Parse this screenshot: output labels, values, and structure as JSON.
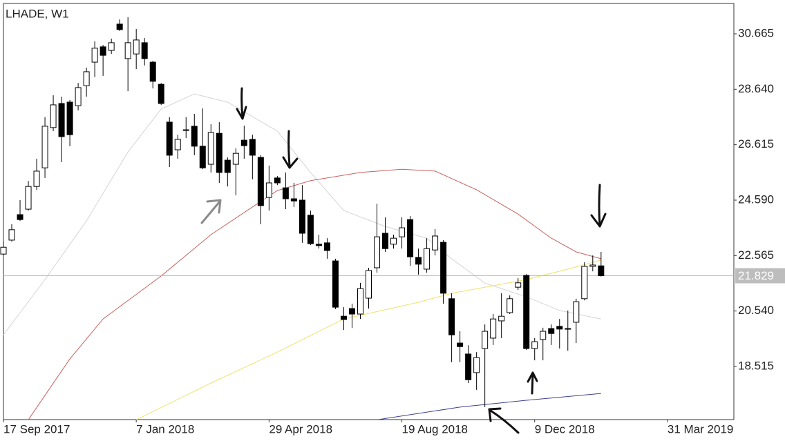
{
  "chart_data": {
    "type": "candlestick",
    "title": "LHADE, W1",
    "categories": [
      "17 Sep 2017",
      null,
      null,
      null,
      null,
      null,
      null,
      null,
      null,
      null,
      null,
      null,
      null,
      null,
      null,
      null,
      "7 Jan 2018",
      null,
      null,
      null,
      null,
      null,
      null,
      null,
      null,
      null,
      null,
      null,
      null,
      null,
      null,
      null,
      "29 Apr 2018",
      null,
      null,
      null,
      null,
      null,
      null,
      null,
      null,
      null,
      null,
      null,
      null,
      null,
      null,
      null,
      "19 Aug 2018",
      null,
      null,
      null,
      null,
      null,
      null,
      null,
      null,
      null,
      null,
      null,
      null,
      null,
      null,
      null,
      "9 Dec 2018",
      null,
      null,
      null,
      null,
      null,
      null,
      null,
      null,
      null,
      null,
      null,
      null,
      null,
      null,
      null,
      "31 Mar 2019",
      null,
      null,
      null,
      null,
      null,
      null,
      null
    ],
    "open": [
      22.62,
      23.13,
      24.06,
      24.26,
      25.09,
      25.77,
      27.24,
      28.12,
      28.17,
      28.04,
      28.77,
      29.63,
      30.19,
      30.06,
      31.02,
      29.76,
      29.93,
      30.34,
      29.63,
      28.82,
      27.44,
      26.43,
      27.16,
      27.29,
      26.56,
      25.9,
      27.03,
      26.05,
      25.9,
      26.78,
      26.81,
      26.15,
      24.69,
      25.4,
      25.04,
      24.64,
      24.59,
      24.04,
      22.98,
      23.03,
      22.37,
      20.35,
      20.63,
      20.43,
      21.01,
      22.12,
      23.38,
      22.98,
      23.25,
      23.88,
      22.5,
      22.07,
      22.77,
      23.05,
      20.99,
      19.37,
      18.97,
      18.29,
      19.17,
      19.55,
      20.18,
      20.48,
      21.41,
      21.84,
      19.17,
      19.5,
      19.9,
      19.98,
      19.9,
      20.13,
      20.99,
      22.17,
      22.19,
      null,
      null,
      null,
      null,
      null,
      null,
      null,
      null,
      null,
      null,
      null,
      null,
      null,
      null,
      null
    ],
    "high": [
      23.08,
      23.71,
      24.59,
      25.29,
      26.1,
      27.62,
      28.42,
      28.37,
      28.25,
      28.87,
      29.43,
      30.39,
      30.26,
      30.49,
      31.19,
      31.27,
      30.84,
      30.51,
      29.68,
      28.87,
      27.62,
      26.98,
      27.62,
      27.74,
      27.94,
      27.36,
      27.44,
      26.15,
      26.48,
      27.31,
      26.98,
      26.23,
      25.85,
      25.47,
      25.6,
      25.22,
      25.14,
      24.21,
      23.33,
      23.2,
      22.45,
      20.68,
      20.81,
      21.57,
      22.12,
      24.46,
      23.96,
      23.33,
      23.96,
      24.01,
      22.82,
      23.2,
      23.53,
      23.13,
      21.19,
      19.8,
      19.29,
      19.04,
      20.05,
      20.43,
      21.19,
      21.11,
      21.74,
      21.89,
      19.55,
      19.93,
      20.05,
      20.25,
      20.56,
      20.99,
      22.32,
      22.57,
      22.7,
      null,
      null,
      null,
      null,
      null,
      null,
      null,
      null,
      null,
      null,
      null,
      null,
      null,
      null,
      null
    ],
    "low": [
      22.57,
      23.08,
      23.83,
      24.21,
      24.97,
      25.4,
      27.11,
      25.98,
      26.56,
      27.87,
      28.37,
      29.08,
      29.13,
      29.93,
      30.77,
      28.57,
      29.38,
      29.51,
      28.67,
      28.07,
      25.8,
      26.1,
      26.86,
      26.23,
      25.72,
      25.6,
      25.22,
      25.09,
      24.77,
      26.1,
      25.35,
      23.71,
      24.21,
      25.14,
      24.26,
      24.34,
      23.03,
      22.95,
      22.82,
      22.45,
      20.61,
      19.85,
      19.92,
      20.25,
      20.63,
      21.94,
      22.7,
      22.82,
      22.82,
      22.19,
      21.87,
      21.94,
      22.57,
      20.81,
      18.67,
      18.67,
      17.91,
      17.66,
      17.03,
      19.3,
      19.55,
      20.43,
      21.31,
      19.12,
      18.74,
      18.74,
      19.3,
      19.17,
      19.09,
      19.37,
      20.93,
      21.99,
      21.8,
      null,
      null,
      null,
      null,
      null,
      null,
      null,
      null,
      null,
      null,
      null,
      null,
      null,
      null,
      null
    ],
    "close": [
      22.87,
      23.51,
      23.88,
      25.09,
      25.65,
      27.29,
      28.07,
      26.91,
      26.98,
      28.7,
      29.28,
      30.14,
      29.88,
      30.34,
      30.82,
      30.34,
      30.44,
      29.76,
      28.93,
      28.12,
      26.23,
      26.81,
      27.14,
      26.56,
      25.77,
      27.06,
      25.6,
      25.6,
      26.3,
      26.58,
      26.23,
      24.39,
      25.22,
      25.22,
      24.64,
      24.56,
      23.38,
      23.0,
      22.93,
      22.75,
      20.68,
      20.23,
      20.43,
      21.36,
      22.02,
      23.25,
      22.82,
      23.2,
      23.58,
      22.52,
      22.25,
      22.82,
      23.28,
      21.19,
      19.67,
      19.24,
      18.03,
      18.84,
      19.8,
      20.25,
      20.35,
      20.99,
      21.57,
      19.17,
      19.42,
      19.8,
      19.72,
      19.88,
      19.88,
      20.88,
      22.17,
      22.22,
      21.83,
      null,
      null,
      null,
      null,
      null,
      null,
      null,
      null,
      null,
      null,
      null,
      null,
      null,
      null,
      null
    ],
    "up_color": "#ffffff",
    "down_color": "#000000",
    "outline_color": "#000000",
    "lines": [
      {
        "color": "#d4d4d4",
        "x": [
          0,
          5,
          10,
          15,
          19,
          23,
          27,
          33,
          37,
          41,
          46,
          51,
          54,
          58,
          63,
          67,
          72
        ],
        "values": [
          19.67,
          21.69,
          23.83,
          26.35,
          27.92,
          28.47,
          28.17,
          27.11,
          25.6,
          24.21,
          23.63,
          23.2,
          22.45,
          21.56,
          21.06,
          20.56,
          20.25
        ]
      },
      {
        "color": "#c8615f",
        "x": [
          3,
          8,
          12,
          19,
          25,
          30,
          33,
          37,
          43,
          48,
          52,
          57,
          62,
          66,
          69,
          72
        ],
        "values": [
          16.57,
          18.79,
          20.25,
          21.82,
          23.33,
          24.34,
          24.94,
          25.3,
          25.6,
          25.72,
          25.65,
          24.97,
          24.08,
          23.2,
          22.7,
          22.45
        ]
      },
      {
        "color": "#eee36a",
        "x": [
          16,
          25,
          33,
          41,
          50,
          54,
          58,
          63,
          68,
          72
        ],
        "values": [
          16.57,
          17.91,
          19.04,
          20.25,
          20.86,
          21.19,
          21.41,
          21.69,
          22.07,
          22.4
        ]
      },
      {
        "color": "#3d3f8f",
        "x": [
          45,
          55,
          63,
          72
        ],
        "values": [
          16.57,
          17.03,
          17.28,
          17.53
        ]
      }
    ],
    "current_price": 21.829,
    "current_price_color": "#bdbdbd",
    "ylim": [
      16.574,
      31.774
    ],
    "yticks": [
      30.665,
      {
        "value": 28.64,
        "label": "28.640"
      },
      26.615,
      {
        "value": 24.59,
        "label": "24.590"
      },
      22.565,
      {
        "value": 20.54,
        "label": "20.540"
      },
      18.515
    ]
  }
}
